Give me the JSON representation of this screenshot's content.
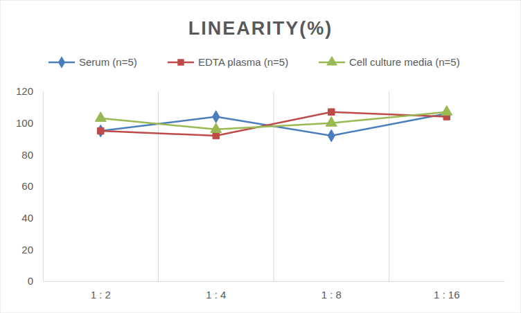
{
  "chart_data": {
    "type": "line",
    "title": "LINEARITY(%)",
    "categories": [
      "1 : 2",
      "1 : 4",
      "1 : 8",
      "1 : 16"
    ],
    "series": [
      {
        "name": "Serum (n=5)",
        "color": "#4a7ebb",
        "marker": "diamond",
        "values": [
          95,
          104,
          92,
          106
        ]
      },
      {
        "name": "EDTA plasma (n=5)",
        "color": "#be4b48",
        "marker": "square",
        "values": [
          95,
          92,
          107,
          104
        ]
      },
      {
        "name": "Cell culture media (n=5)",
        "color": "#98b954",
        "marker": "triangle",
        "values": [
          103,
          96,
          100,
          107
        ]
      }
    ],
    "ylim": [
      0,
      120
    ],
    "yticks": [
      0,
      20,
      40,
      60,
      80,
      100,
      120
    ],
    "grid": true,
    "legend": "top"
  }
}
